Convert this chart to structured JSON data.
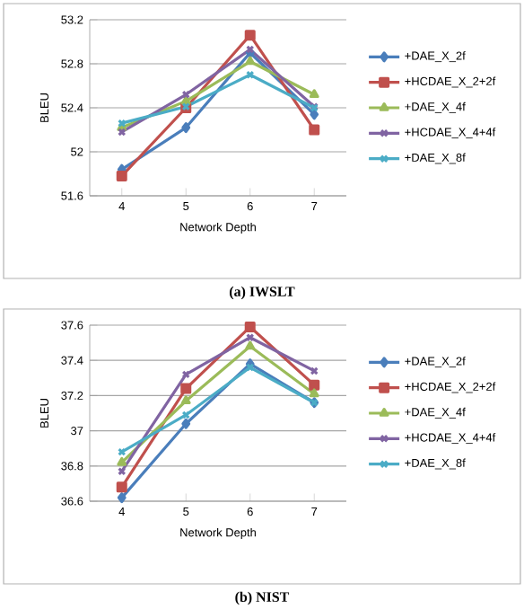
{
  "chart_data": [
    {
      "type": "line",
      "title": "(a) IWSLT",
      "xlabel": "Network Depth",
      "ylabel": "BLEU",
      "categories": [
        "4",
        "5",
        "6",
        "7"
      ],
      "ylim": [
        51.6,
        53.2
      ],
      "yticks": [
        51.6,
        52,
        52.4,
        52.8,
        53.2
      ],
      "grid": "y",
      "legend": "right",
      "series": [
        {
          "name": "+DAE_X_2f",
          "color": "#4a7ebb",
          "marker": "diamond",
          "values": [
            51.84,
            52.22,
            52.9,
            52.34
          ]
        },
        {
          "name": "+HCDAE_X_2+2f",
          "color": "#c0504d",
          "marker": "square",
          "values": [
            51.78,
            52.4,
            53.06,
            52.2
          ]
        },
        {
          "name": "+DAE_X_4f",
          "color": "#9bbb59",
          "marker": "triangle",
          "values": [
            52.22,
            52.46,
            52.82,
            52.52
          ]
        },
        {
          "name": "+HCDAE_X_4+4f",
          "color": "#8064a2",
          "marker": "cross",
          "values": [
            52.18,
            52.52,
            52.93,
            52.41
          ]
        },
        {
          "name": "+DAE_X_8f",
          "color": "#4bacc6",
          "marker": "cross",
          "values": [
            52.26,
            52.41,
            52.7,
            52.4
          ]
        }
      ]
    },
    {
      "type": "line",
      "title": "(b) NIST",
      "xlabel": "Network Depth",
      "ylabel": "BLEU",
      "categories": [
        "4",
        "5",
        "6",
        "7"
      ],
      "ylim": [
        36.6,
        37.6
      ],
      "yticks": [
        36.6,
        36.8,
        37,
        37.2,
        37.4,
        37.6
      ],
      "grid": "y",
      "legend": "right",
      "series": [
        {
          "name": "+DAE_X_2f",
          "color": "#4a7ebb",
          "marker": "diamond",
          "values": [
            36.62,
            37.04,
            37.38,
            37.16
          ]
        },
        {
          "name": "+HCDAE_X_2+2f",
          "color": "#c0504d",
          "marker": "square",
          "values": [
            36.68,
            37.24,
            37.59,
            37.26
          ]
        },
        {
          "name": "+DAE_X_4f",
          "color": "#9bbb59",
          "marker": "triangle",
          "values": [
            36.82,
            37.17,
            37.48,
            37.21
          ]
        },
        {
          "name": "+HCDAE_X_4+4f",
          "color": "#8064a2",
          "marker": "cross",
          "values": [
            36.77,
            37.32,
            37.53,
            37.34
          ]
        },
        {
          "name": "+DAE_X_8f",
          "color": "#4bacc6",
          "marker": "cross",
          "values": [
            36.88,
            37.09,
            37.36,
            37.16
          ]
        }
      ]
    }
  ]
}
